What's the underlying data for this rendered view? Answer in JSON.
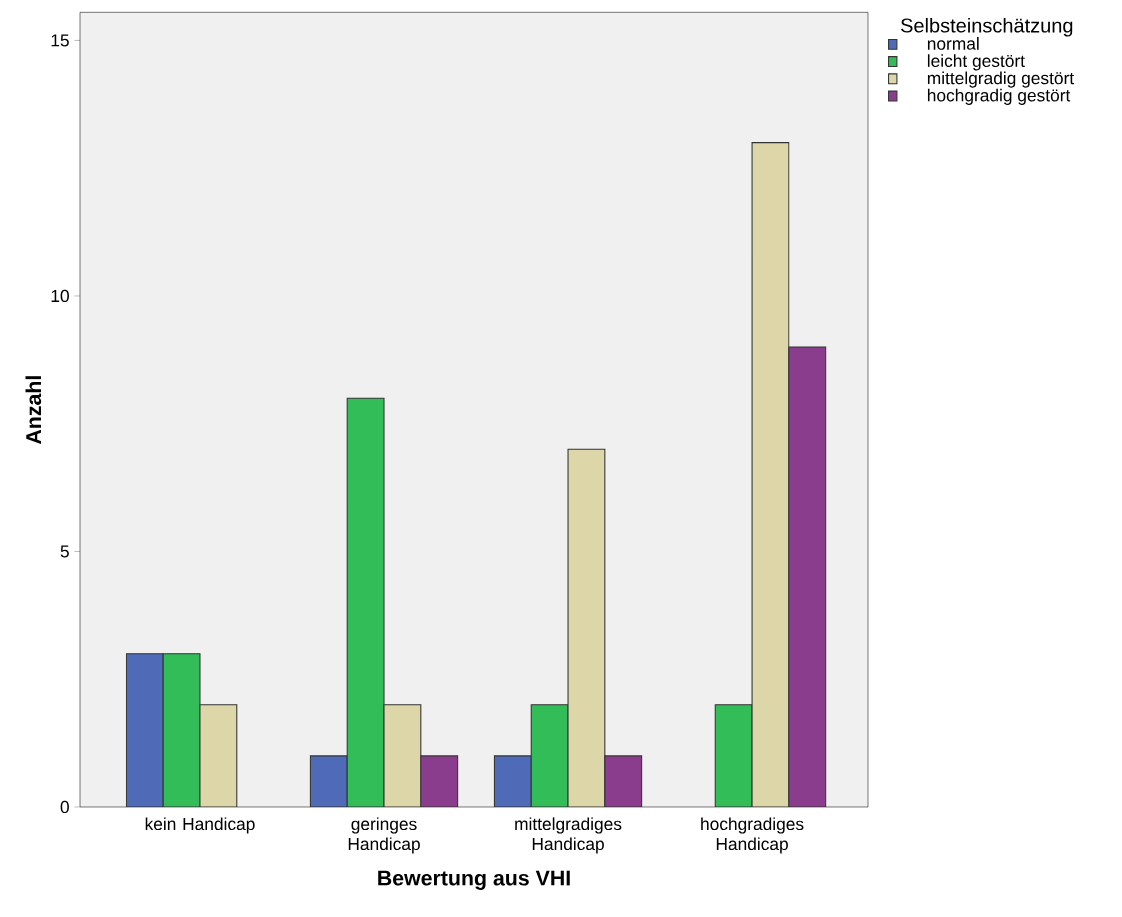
{
  "chart_data": {
    "type": "bar",
    "xlabel": "Bewertung aus VHI",
    "ylabel": "Anzahl",
    "legend_title": "Selbsteinschätzung",
    "categories": [
      "kein Handicap",
      "geringes Handicap",
      "mittelgradiges Handicap",
      "hochgradiges Handicap"
    ],
    "series": [
      {
        "name": "normal",
        "color": "#4f6bb8",
        "values": [
          3,
          1,
          1,
          null
        ]
      },
      {
        "name": "leicht gestört",
        "color": "#33bd59",
        "values": [
          3,
          8,
          2,
          2
        ]
      },
      {
        "name": "mittelgradig gestört",
        "color": "#dcd6a8",
        "values": [
          2,
          2,
          7,
          13
        ]
      },
      {
        "name": "hochgradig gestört",
        "color": "#8a3d8c",
        "values": [
          null,
          1,
          1,
          9
        ]
      }
    ],
    "ylim": [
      0,
      15.55
    ],
    "yticks": [
      0,
      5,
      10,
      15
    ],
    "grid": false,
    "legend": "top right"
  }
}
